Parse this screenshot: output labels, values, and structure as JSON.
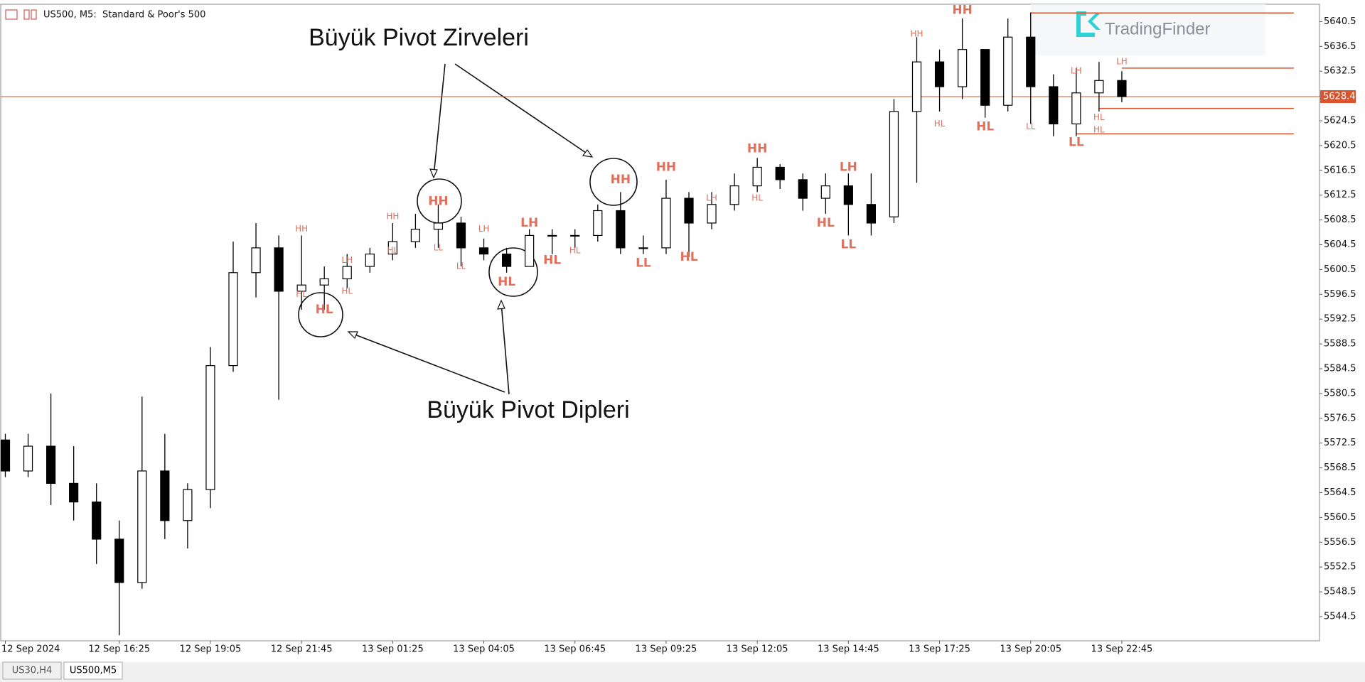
{
  "chart_data": {
    "type": "candlestick",
    "header": "US500, M5:  Standard & Poor's 500",
    "watermark": "TradingFinder",
    "annotations": [
      "Büyük Pivot Zirveleri",
      "Büyük Pivot Dipleri"
    ],
    "tabs": [
      "US30,H4",
      "US500,M5"
    ],
    "categories": [
      "12 Sep 2024",
      null,
      null,
      null,
      null,
      "12 Sep 16:25",
      null,
      null,
      null,
      "12 Sep 19:05",
      null,
      null,
      null,
      "12 Sep 21:45",
      null,
      null,
      null,
      "13 Sep 01:25",
      null,
      null,
      null,
      "13 Sep 04:05",
      null,
      null,
      null,
      "13 Sep 06:45",
      null,
      null,
      null,
      "13 Sep 09:25",
      null,
      null,
      null,
      "13 Sep 12:05",
      null,
      null,
      null,
      "13 Sep 14:45",
      null,
      null,
      null,
      "13 Sep 17:25",
      null,
      null,
      null,
      "13 Sep 20:05",
      null,
      null,
      null,
      "13 Sep 22:45"
    ],
    "open": [
      5573,
      5568,
      5572,
      5566,
      5563,
      5557,
      5550,
      5568,
      5560,
      5565,
      5585,
      5600,
      5604,
      5597,
      5598,
      5599,
      5601,
      5603,
      5605,
      5607,
      5608,
      5604,
      5603,
      5601,
      5606,
      5606,
      5606,
      5610,
      5604,
      5604,
      5612,
      5608,
      5611,
      5614,
      5617,
      5615,
      5612,
      5614,
      5611,
      5609,
      5626,
      5634,
      5630,
      5636,
      5627,
      5638,
      5630,
      5624,
      5629,
      5631
    ],
    "high": [
      5574,
      5574,
      5580.5,
      5572,
      5566,
      5560,
      5580,
      5574,
      5566,
      5588,
      5605,
      5608,
      5606,
      5606,
      5601,
      5603,
      5604,
      5608,
      5609.5,
      5611,
      5609,
      5605.5,
      5604,
      5607,
      5607,
      5607,
      5611,
      5613,
      5606,
      5615,
      5613,
      5613,
      5616,
      5618.5,
      5617.5,
      5616,
      5616,
      5616,
      5616,
      5628,
      5638,
      5636,
      5641,
      5636,
      5641,
      5642,
      5632,
      5633,
      5634,
      5632.5
    ],
    "low": [
      5567,
      5567,
      5562.5,
      5560,
      5553,
      5541.5,
      5549,
      5557,
      5555.5,
      5562,
      5584,
      5596,
      5579.5,
      5594,
      5594,
      5597.5,
      5600,
      5602,
      5604,
      5604,
      5601,
      5602,
      5600,
      5601,
      5603,
      5604,
      5605,
      5603,
      5603,
      5603,
      5602.5,
      5607,
      5610,
      5613,
      5613.5,
      5610,
      5609.5,
      5606,
      5606,
      5608,
      5614.5,
      5626,
      5628,
      5625,
      5626,
      5624,
      5622,
      5622,
      5626,
      5627.5
    ],
    "close": [
      5568,
      5572,
      5566,
      5563,
      5557,
      5550,
      5568,
      5560,
      5565,
      5585,
      5600,
      5604,
      5597,
      5598,
      5599,
      5601,
      5603,
      5605,
      5607,
      5608,
      5604,
      5603,
      5601,
      5606,
      5606,
      5606,
      5610,
      5604,
      5604,
      5612,
      5608,
      5611,
      5614,
      5617,
      5615,
      5612,
      5614,
      5611,
      5608,
      5626,
      5634,
      5630,
      5636,
      5627,
      5638,
      5630,
      5624,
      5629,
      5631,
      5628.4
    ],
    "pivots": [
      {
        "label": "HH",
        "x": 13,
        "value": 5607,
        "major": false
      },
      {
        "label": "HL",
        "x": 13,
        "value": 5596.5,
        "major": false
      },
      {
        "label": "HL",
        "x": 14,
        "value": 5594,
        "major": true
      },
      {
        "label": "LH",
        "x": 15,
        "value": 5602,
        "major": false
      },
      {
        "label": "HL",
        "x": 15,
        "value": 5597,
        "major": false
      },
      {
        "label": "HH",
        "x": 17,
        "value": 5609,
        "major": false
      },
      {
        "label": "HL",
        "x": 17,
        "value": 5603.5,
        "major": false
      },
      {
        "label": "HH",
        "x": 19,
        "value": 5611.5,
        "major": true
      },
      {
        "label": "LL",
        "x": 19,
        "value": 5604,
        "major": false
      },
      {
        "label": "LL",
        "x": 20,
        "value": 5601,
        "major": false
      },
      {
        "label": "LH",
        "x": 21,
        "value": 5607,
        "major": false
      },
      {
        "label": "HL",
        "x": 22,
        "value": 5598.5,
        "major": true
      },
      {
        "label": "LH",
        "x": 23,
        "value": 5608,
        "major": true
      },
      {
        "label": "HL",
        "x": 24,
        "value": 5602,
        "major": true
      },
      {
        "label": "HL",
        "x": 25,
        "value": 5603.5,
        "major": false
      },
      {
        "label": "HH",
        "x": 27,
        "value": 5615,
        "major": true
      },
      {
        "label": "LL",
        "x": 28,
        "value": 5601.5,
        "major": true
      },
      {
        "label": "HH",
        "x": 29,
        "value": 5617,
        "major": true
      },
      {
        "label": "HL",
        "x": 30,
        "value": 5602.5,
        "major": true
      },
      {
        "label": "LH",
        "x": 31,
        "value": 5612,
        "major": false
      },
      {
        "label": "HH",
        "x": 33,
        "value": 5620,
        "major": true
      },
      {
        "label": "HL",
        "x": 33,
        "value": 5612,
        "major": false
      },
      {
        "label": "HL",
        "x": 36,
        "value": 5608,
        "major": true
      },
      {
        "label": "LH",
        "x": 37,
        "value": 5617,
        "major": true
      },
      {
        "label": "LL",
        "x": 37,
        "value": 5604.5,
        "major": true
      },
      {
        "label": "HH",
        "x": 40,
        "value": 5638.5,
        "major": false
      },
      {
        "label": "HL",
        "x": 41,
        "value": 5624,
        "major": false
      },
      {
        "label": "HH",
        "x": 42,
        "value": 5642.3,
        "major": true
      },
      {
        "label": "HL",
        "x": 43,
        "value": 5623.5,
        "major": true
      },
      {
        "label": "LL",
        "x": 45,
        "value": 5623.5,
        "major": false
      },
      {
        "label": "LL",
        "x": 47,
        "value": 5621,
        "major": true
      },
      {
        "label": "LH",
        "x": 47,
        "value": 5632.5,
        "major": false
      },
      {
        "label": "HL",
        "x": 48,
        "value": 5623,
        "major": false
      },
      {
        "label": "HL",
        "x": 48,
        "value": 5625,
        "major": false
      },
      {
        "label": "LH",
        "x": 49,
        "value": 5634,
        "major": false
      }
    ],
    "levels": [
      {
        "x": 45,
        "value": 5641.9
      },
      {
        "x": 49,
        "value": 5633
      },
      {
        "x": 48,
        "value": 5626.5
      },
      {
        "x": 47,
        "value": 5622.4
      }
    ],
    "current_price": 5628.4,
    "bull_color": "#ffffff",
    "bear_color": "#000000",
    "pivot_color": "#e0705e",
    "level_color": "#d9532c",
    "ylim": [
      5540.6,
      5643.3
    ],
    "yticks": [
      5544.5,
      5548.5,
      5552.5,
      5556.5,
      5560.5,
      5564.5,
      5568.5,
      5572.5,
      5576.5,
      5580.5,
      5584.5,
      5588.5,
      5592.5,
      5596.5,
      5600.5,
      5604.5,
      5608.5,
      5612.5,
      5616.5,
      5620.5,
      5624.5,
      5628.5,
      5632.5,
      5636.5,
      5640.5
    ],
    "grid": false
  }
}
